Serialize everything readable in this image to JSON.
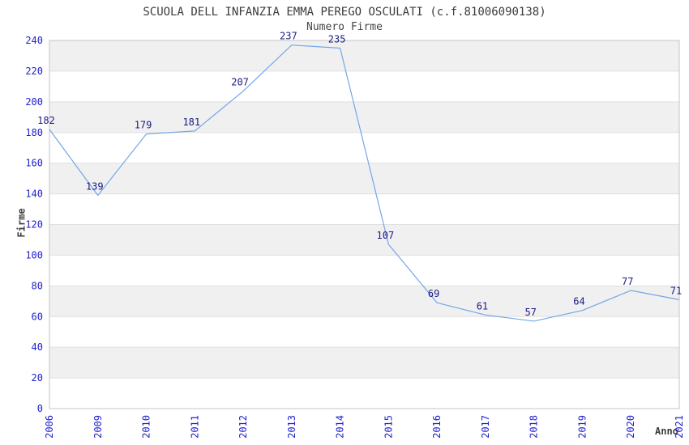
{
  "chart_data": {
    "type": "line",
    "title": "SCUOLA DELL INFANZIA EMMA PEREGO OSCULATI (c.f.81006090138)",
    "subtitle": "Numero Firme",
    "xlabel": "Anno",
    "ylabel": "Firme",
    "categories": [
      "2006",
      "2009",
      "2010",
      "2011",
      "2012",
      "2013",
      "2014",
      "2015",
      "2016",
      "2017",
      "2018",
      "2019",
      "2020",
      "2021"
    ],
    "values": [
      182,
      139,
      179,
      181,
      207,
      237,
      235,
      107,
      69,
      61,
      57,
      64,
      77,
      71
    ],
    "ylim": [
      0,
      240
    ],
    "ytick_step": 20,
    "yticks": [
      0,
      20,
      40,
      60,
      80,
      100,
      120,
      140,
      160,
      180,
      200,
      220,
      240
    ],
    "grid": "horizontal gridlines with alternating gray/white bands",
    "legend": "none",
    "data_labels": true,
    "colors": {
      "line": "#74a7e6",
      "tick_label": "#2222cc",
      "data_label": "#1a1a82",
      "band_gray": "#f0f0f0",
      "band_white": "#ffffff",
      "gridline": "#e0e0e0",
      "plot_border": "#c4c4c4",
      "title_text": "#3c3c3c"
    }
  }
}
